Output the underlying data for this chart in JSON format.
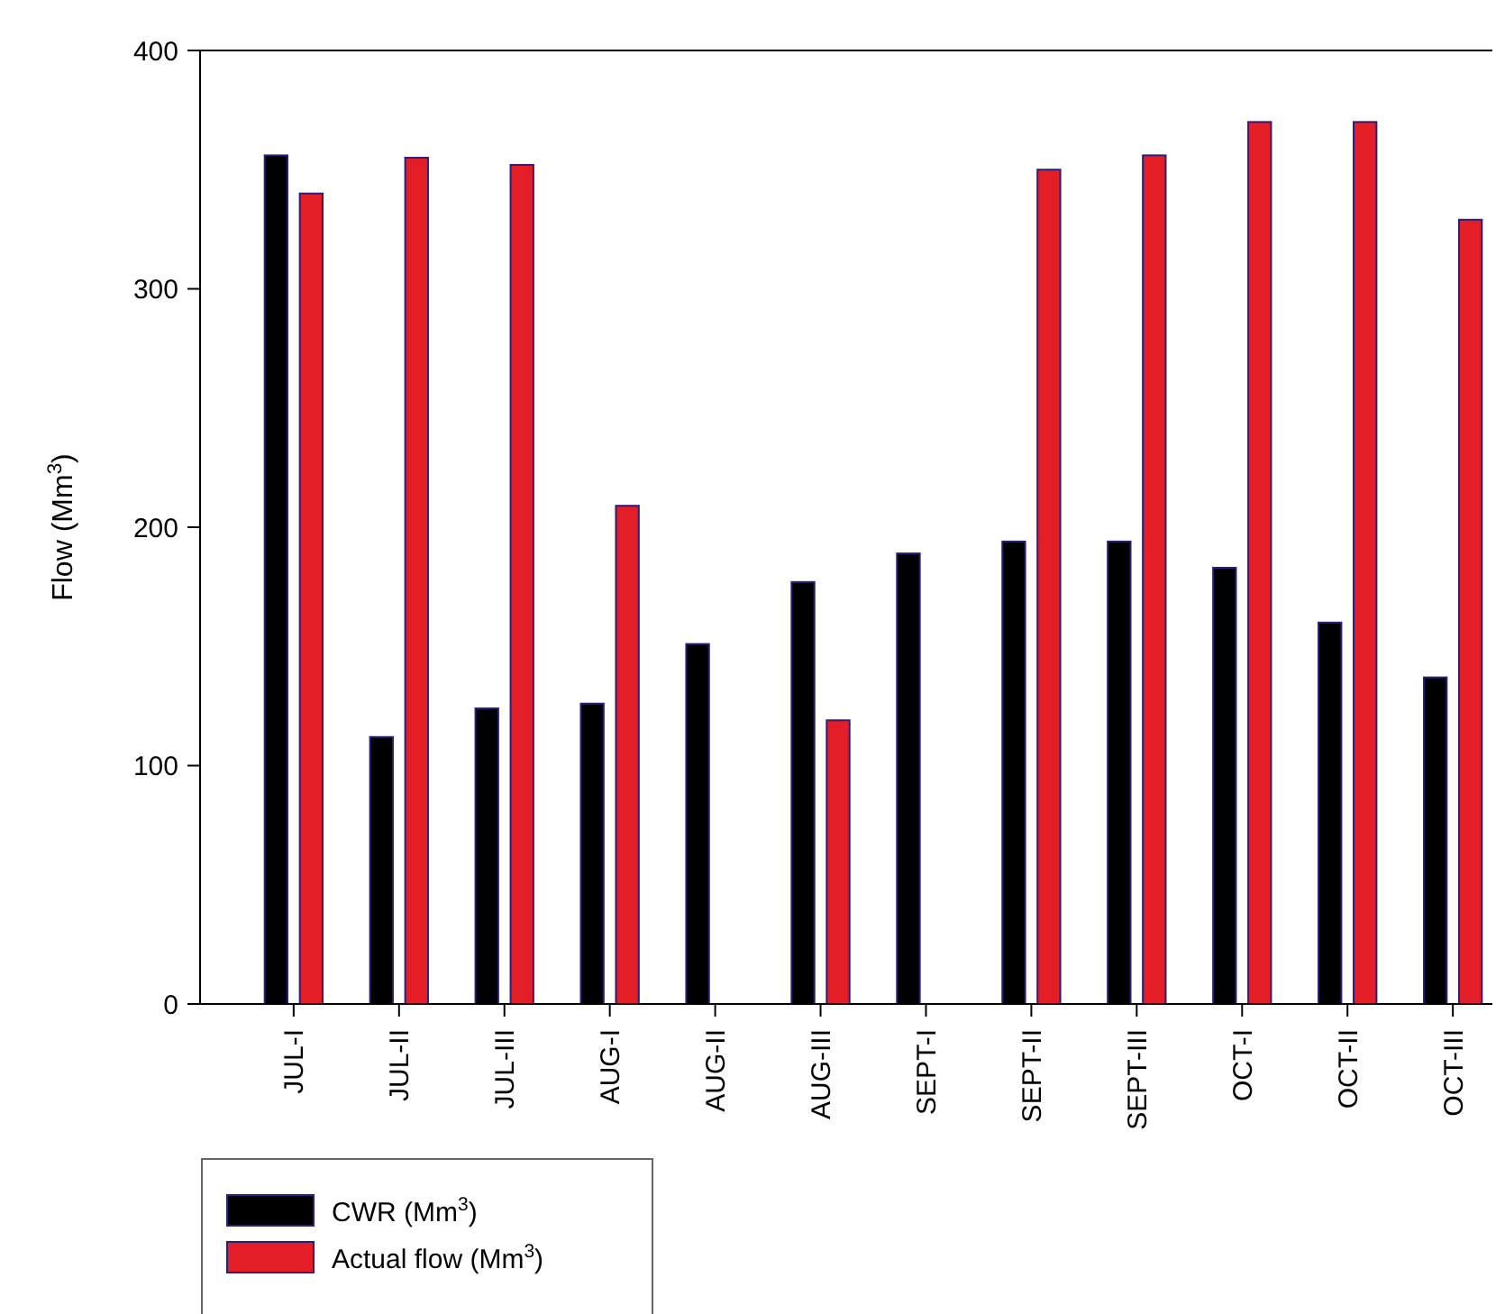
{
  "chart_data": {
    "type": "bar",
    "ylabel": "Flow (Mm$^{3}$)",
    "categories": [
      "JUL-I",
      "JUL-II",
      "JUL-III",
      "AUG-I",
      "AUG-II",
      "AUG-III",
      "SEPT-I",
      "SEPT-II",
      "SEPT-III",
      "OCT-I",
      "OCT-II",
      "OCT-III"
    ],
    "series": [
      {
        "name": "CWR (Mm$^{3}$)",
        "color": "#000000",
        "values": [
          356,
          112,
          124,
          126,
          151,
          177,
          189,
          194,
          194,
          183,
          160,
          137
        ]
      },
      {
        "name": "Actual flow (Mm$^{3}$)",
        "color": "#e41e26",
        "values": [
          340,
          355,
          352,
          209,
          null,
          119,
          null,
          350,
          356,
          370,
          370,
          329
        ]
      }
    ],
    "ylim": [
      0,
      400
    ],
    "yticks": [
      0,
      100,
      200,
      300,
      400
    ],
    "legend": "bottom left"
  }
}
